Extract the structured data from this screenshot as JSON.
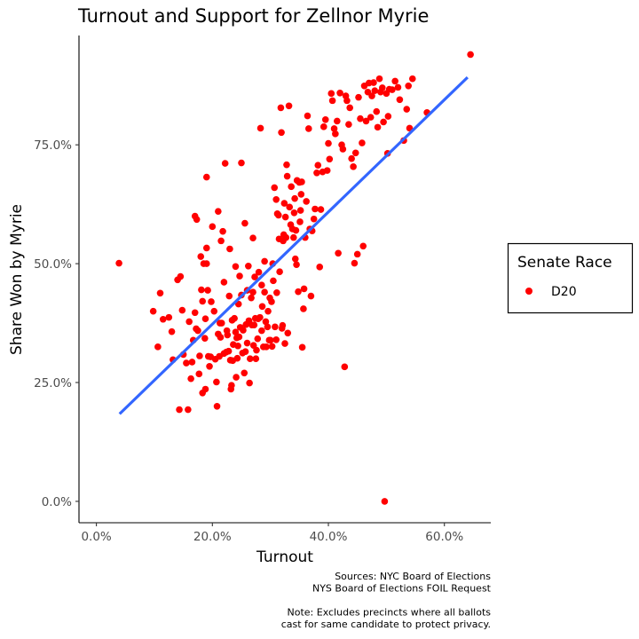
{
  "chart_data": {
    "type": "scatter",
    "title": "Turnout and Support for Zellnor Myrie",
    "xlabel": "Turnout",
    "ylabel": "Share Won by Myrie",
    "xlim": [
      -0.03,
      0.68
    ],
    "ylim": [
      -0.045,
      0.98
    ],
    "x_ticks": [
      {
        "value": 0.0,
        "label": "0.0%"
      },
      {
        "value": 0.2,
        "label": "20.0%"
      },
      {
        "value": 0.4,
        "label": "40.0%"
      },
      {
        "value": 0.6,
        "label": "60.0%"
      }
    ],
    "y_ticks": [
      {
        "value": 0.0,
        "label": "0.0%"
      },
      {
        "value": 0.25,
        "label": "25.0%"
      },
      {
        "value": 0.5,
        "label": "50.0%"
      },
      {
        "value": 0.75,
        "label": "75.0%"
      }
    ],
    "grid": false,
    "legend": {
      "title": "Senate Race",
      "placement": "right"
    },
    "series": [
      {
        "name": "D20",
        "color": "#ff0000",
        "points": [
          [
            0.039,
            0.501
          ],
          [
            0.098,
            0.4
          ],
          [
            0.106,
            0.325
          ],
          [
            0.11,
            0.438
          ],
          [
            0.115,
            0.383
          ],
          [
            0.125,
            0.387
          ],
          [
            0.13,
            0.357
          ],
          [
            0.132,
            0.298
          ],
          [
            0.14,
            0.466
          ],
          [
            0.143,
            0.193
          ],
          [
            0.145,
            0.473
          ],
          [
            0.148,
            0.402
          ],
          [
            0.15,
            0.309
          ],
          [
            0.155,
            0.291
          ],
          [
            0.158,
            0.193
          ],
          [
            0.16,
            0.378
          ],
          [
            0.163,
            0.258
          ],
          [
            0.165,
            0.293
          ],
          [
            0.167,
            0.339
          ],
          [
            0.17,
            0.397
          ],
          [
            0.17,
            0.6
          ],
          [
            0.172,
            0.363
          ],
          [
            0.173,
            0.593
          ],
          [
            0.175,
            0.359
          ],
          [
            0.177,
            0.268
          ],
          [
            0.178,
            0.306
          ],
          [
            0.18,
            0.515
          ],
          [
            0.181,
            0.445
          ],
          [
            0.183,
            0.228
          ],
          [
            0.183,
            0.421
          ],
          [
            0.185,
            0.5
          ],
          [
            0.187,
            0.343
          ],
          [
            0.188,
            0.384
          ],
          [
            0.188,
            0.236
          ],
          [
            0.19,
            0.5
          ],
          [
            0.19,
            0.682
          ],
          [
            0.19,
            0.533
          ],
          [
            0.192,
            0.444
          ],
          [
            0.193,
            0.305
          ],
          [
            0.195,
            0.284
          ],
          [
            0.197,
            0.304
          ],
          [
            0.198,
            0.42
          ],
          [
            0.2,
            0.578
          ],
          [
            0.203,
            0.4
          ],
          [
            0.205,
            0.299
          ],
          [
            0.207,
            0.251
          ],
          [
            0.208,
            0.2
          ],
          [
            0.21,
            0.352
          ],
          [
            0.21,
            0.61
          ],
          [
            0.212,
            0.305
          ],
          [
            0.213,
            0.375
          ],
          [
            0.214,
            0.345
          ],
          [
            0.215,
            0.548
          ],
          [
            0.216,
            0.375
          ],
          [
            0.218,
            0.568
          ],
          [
            0.22,
            0.311
          ],
          [
            0.22,
            0.461
          ],
          [
            0.222,
            0.711
          ],
          [
            0.224,
            0.314
          ],
          [
            0.225,
            0.359
          ],
          [
            0.226,
            0.35
          ],
          [
            0.228,
            0.316
          ],
          [
            0.229,
            0.432
          ],
          [
            0.23,
            0.531
          ],
          [
            0.231,
            0.297
          ],
          [
            0.232,
            0.236
          ],
          [
            0.233,
            0.244
          ],
          [
            0.234,
            0.381
          ],
          [
            0.235,
            0.296
          ],
          [
            0.236,
            0.33
          ],
          [
            0.238,
            0.385
          ],
          [
            0.24,
            0.356
          ],
          [
            0.24,
            0.494
          ],
          [
            0.241,
            0.261
          ],
          [
            0.242,
            0.344
          ],
          [
            0.243,
            0.301
          ],
          [
            0.244,
            0.327
          ],
          [
            0.245,
            0.415
          ],
          [
            0.246,
            0.346
          ],
          [
            0.247,
            0.474
          ],
          [
            0.248,
            0.366
          ],
          [
            0.25,
            0.434
          ],
          [
            0.25,
            0.712
          ],
          [
            0.252,
            0.312
          ],
          [
            0.253,
            0.36
          ],
          [
            0.255,
            0.27
          ],
          [
            0.256,
            0.585
          ],
          [
            0.257,
            0.315
          ],
          [
            0.258,
            0.372
          ],
          [
            0.26,
            0.444
          ],
          [
            0.26,
            0.333
          ],
          [
            0.262,
            0.495
          ],
          [
            0.263,
            0.38
          ],
          [
            0.264,
            0.249
          ],
          [
            0.265,
            0.3
          ],
          [
            0.267,
            0.428
          ],
          [
            0.268,
            0.371
          ],
          [
            0.27,
            0.44
          ],
          [
            0.27,
            0.554
          ],
          [
            0.271,
            0.328
          ],
          [
            0.272,
            0.371
          ],
          [
            0.273,
            0.472
          ],
          [
            0.274,
            0.385
          ],
          [
            0.275,
            0.3
          ],
          [
            0.276,
            0.318
          ],
          [
            0.278,
            0.342
          ],
          [
            0.279,
            0.384
          ],
          [
            0.28,
            0.482
          ],
          [
            0.282,
            0.387
          ],
          [
            0.283,
            0.785
          ],
          [
            0.285,
            0.455
          ],
          [
            0.285,
            0.359
          ],
          [
            0.286,
            0.41
          ],
          [
            0.288,
            0.325
          ],
          [
            0.29,
            0.505
          ],
          [
            0.29,
            0.44
          ],
          [
            0.292,
            0.378
          ],
          [
            0.293,
            0.325
          ],
          [
            0.295,
            0.367
          ],
          [
            0.296,
            0.4
          ],
          [
            0.298,
            0.339
          ],
          [
            0.299,
            0.428
          ],
          [
            0.3,
            0.339
          ],
          [
            0.302,
            0.42
          ],
          [
            0.303,
            0.326
          ],
          [
            0.304,
            0.5
          ],
          [
            0.305,
            0.464
          ],
          [
            0.307,
            0.66
          ],
          [
            0.308,
            0.367
          ],
          [
            0.31,
            0.34
          ],
          [
            0.31,
            0.635
          ],
          [
            0.311,
            0.439
          ],
          [
            0.312,
            0.605
          ],
          [
            0.314,
            0.602
          ],
          [
            0.315,
            0.552
          ],
          [
            0.316,
            0.483
          ],
          [
            0.318,
            0.828
          ],
          [
            0.319,
            0.776
          ],
          [
            0.32,
            0.364
          ],
          [
            0.321,
            0.37
          ],
          [
            0.322,
            0.548
          ],
          [
            0.323,
            0.561
          ],
          [
            0.324,
            0.627
          ],
          [
            0.325,
            0.332
          ],
          [
            0.326,
            0.598
          ],
          [
            0.327,
            0.555
          ],
          [
            0.328,
            0.708
          ],
          [
            0.329,
            0.684
          ],
          [
            0.33,
            0.354
          ],
          [
            0.332,
            0.832
          ],
          [
            0.333,
            0.619
          ],
          [
            0.335,
            0.582
          ],
          [
            0.336,
            0.662
          ],
          [
            0.338,
            0.573
          ],
          [
            0.34,
            0.555
          ],
          [
            0.341,
            0.607
          ],
          [
            0.342,
            0.637
          ],
          [
            0.343,
            0.51
          ],
          [
            0.344,
            0.57
          ],
          [
            0.345,
            0.498
          ],
          [
            0.346,
            0.675
          ],
          [
            0.348,
            0.441
          ],
          [
            0.35,
            0.671
          ],
          [
            0.351,
            0.588
          ],
          [
            0.352,
            0.612
          ],
          [
            0.353,
            0.646
          ],
          [
            0.354,
            0.672
          ],
          [
            0.355,
            0.324
          ],
          [
            0.357,
            0.405
          ],
          [
            0.358,
            0.447
          ],
          [
            0.36,
            0.555
          ],
          [
            0.362,
            0.631
          ],
          [
            0.364,
            0.811
          ],
          [
            0.366,
            0.784
          ],
          [
            0.368,
            0.573
          ],
          [
            0.37,
            0.432
          ],
          [
            0.372,
            0.569
          ],
          [
            0.375,
            0.594
          ],
          [
            0.377,
            0.615
          ],
          [
            0.38,
            0.691
          ],
          [
            0.382,
            0.707
          ],
          [
            0.385,
            0.493
          ],
          [
            0.387,
            0.614
          ],
          [
            0.39,
            0.693
          ],
          [
            0.392,
            0.788
          ],
          [
            0.395,
            0.803
          ],
          [
            0.398,
            0.696
          ],
          [
            0.4,
            0.753
          ],
          [
            0.402,
            0.72
          ],
          [
            0.405,
            0.858
          ],
          [
            0.407,
            0.843
          ],
          [
            0.41,
            0.784
          ],
          [
            0.412,
            0.773
          ],
          [
            0.415,
            0.8
          ],
          [
            0.417,
            0.522
          ],
          [
            0.42,
            0.859
          ],
          [
            0.423,
            0.75
          ],
          [
            0.425,
            0.741
          ],
          [
            0.428,
            0.283
          ],
          [
            0.43,
            0.853
          ],
          [
            0.432,
            0.843
          ],
          [
            0.435,
            0.793
          ],
          [
            0.437,
            0.828
          ],
          [
            0.44,
            0.721
          ],
          [
            0.443,
            0.704
          ],
          [
            0.445,
            0.501
          ],
          [
            0.447,
            0.733
          ],
          [
            0.45,
            0.52
          ],
          [
            0.452,
            0.85
          ],
          [
            0.455,
            0.805
          ],
          [
            0.458,
            0.754
          ],
          [
            0.46,
            0.537
          ],
          [
            0.462,
            0.874
          ],
          [
            0.465,
            0.8
          ],
          [
            0.468,
            0.861
          ],
          [
            0.47,
            0.88
          ],
          [
            0.473,
            0.808
          ],
          [
            0.475,
            0.853
          ],
          [
            0.478,
            0.881
          ],
          [
            0.48,
            0.864
          ],
          [
            0.483,
            0.82
          ],
          [
            0.485,
            0.787
          ],
          [
            0.488,
            0.889
          ],
          [
            0.49,
            0.861
          ],
          [
            0.493,
            0.87
          ],
          [
            0.495,
            0.798
          ],
          [
            0.497,
            0.0
          ],
          [
            0.5,
            0.858
          ],
          [
            0.502,
            0.732
          ],
          [
            0.503,
            0.81
          ],
          [
            0.505,
            0.867
          ],
          [
            0.51,
            0.866
          ],
          [
            0.515,
            0.884
          ],
          [
            0.52,
            0.871
          ],
          [
            0.523,
            0.845
          ],
          [
            0.53,
            0.759
          ],
          [
            0.535,
            0.825
          ],
          [
            0.538,
            0.874
          ],
          [
            0.54,
            0.785
          ],
          [
            0.545,
            0.889
          ],
          [
            0.57,
            0.818
          ],
          [
            0.645,
            0.94
          ]
        ]
      }
    ],
    "trend_line": {
      "color": "#3366ff",
      "x": [
        0.04,
        0.64
      ],
      "y": [
        0.184,
        0.892
      ]
    },
    "caption": [
      "Sources: NYC Board of Elections",
      "NYS Board of Elections FOIL Request",
      "",
      "Note: Excludes precincts where all ballots",
      "cast for same candidate to protect privacy."
    ]
  }
}
